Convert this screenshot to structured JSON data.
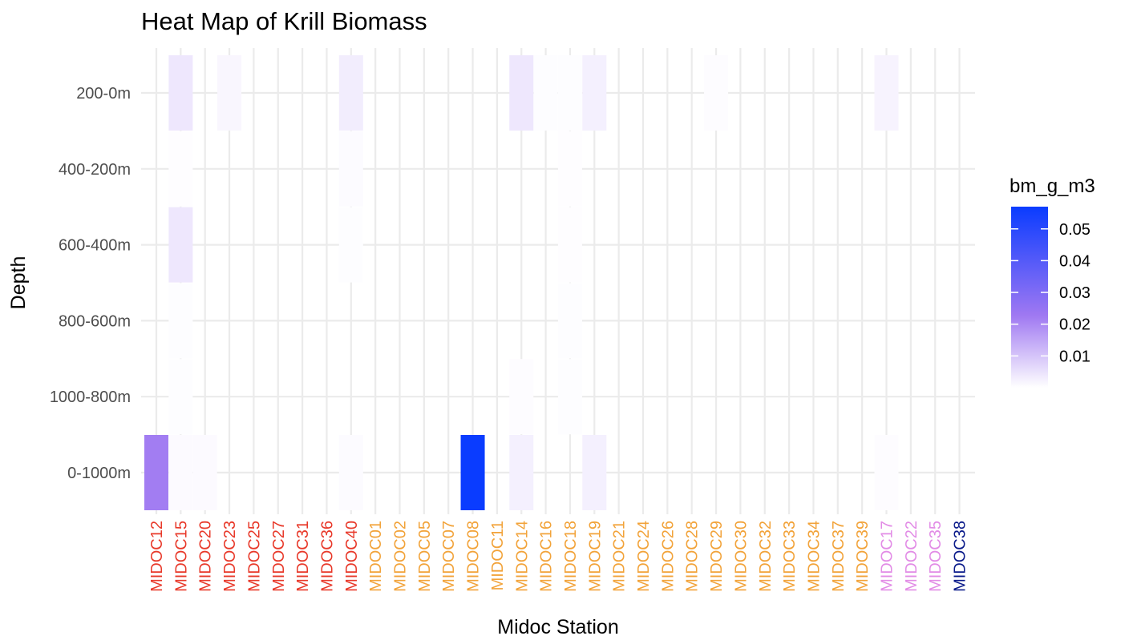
{
  "chart_data": {
    "type": "heatmap",
    "title": "Heat Map of Krill Biomass",
    "xlabel": "Midoc Station",
    "ylabel": "Depth",
    "x_categories": [
      "MIDOC12",
      "MIDOC15",
      "MIDOC20",
      "MIDOC23",
      "MIDOC25",
      "MIDOC27",
      "MIDOC31",
      "MIDOC36",
      "MIDOC40",
      "MIDOC01",
      "MIDOC02",
      "MIDOC05",
      "MIDOC07",
      "MIDOC08",
      "MIDOC11",
      "MIDOC14",
      "MIDOC16",
      "MIDOC18",
      "MIDOC19",
      "MIDOC21",
      "MIDOC24",
      "MIDOC26",
      "MIDOC28",
      "MIDOC29",
      "MIDOC30",
      "MIDOC32",
      "MIDOC33",
      "MIDOC34",
      "MIDOC37",
      "MIDOC39",
      "MIDOC17",
      "MIDOC22",
      "MIDOC35",
      "MIDOC38"
    ],
    "x_label_colors": [
      "#e8392a",
      "#e8392a",
      "#e8392a",
      "#e8392a",
      "#e8392a",
      "#e8392a",
      "#e8392a",
      "#e8392a",
      "#e8392a",
      "#f2a33a",
      "#f2a33a",
      "#f2a33a",
      "#f2a33a",
      "#f2a33a",
      "#f2a33a",
      "#f2a33a",
      "#f2a33a",
      "#f2a33a",
      "#f2a33a",
      "#f2a33a",
      "#f2a33a",
      "#f2a33a",
      "#f2a33a",
      "#f2a33a",
      "#f2a33a",
      "#f2a33a",
      "#f2a33a",
      "#f2a33a",
      "#f2a33a",
      "#f2a33a",
      "#e28ce6",
      "#e28ce6",
      "#e28ce6",
      "#0a1a8a"
    ],
    "y_categories": [
      "200-0m",
      "400-200m",
      "600-400m",
      "800-600m",
      "1000-800m",
      "0-1000m"
    ],
    "cells": [
      {
        "x": "MIDOC15",
        "y": "200-0m",
        "value": 0.004
      },
      {
        "x": "MIDOC23",
        "y": "200-0m",
        "value": 0.0015
      },
      {
        "x": "MIDOC40",
        "y": "200-0m",
        "value": 0.003
      },
      {
        "x": "MIDOC14",
        "y": "200-0m",
        "value": 0.004
      },
      {
        "x": "MIDOC16",
        "y": "200-0m",
        "value": 0.0004
      },
      {
        "x": "MIDOC18",
        "y": "200-0m",
        "value": 0.0004
      },
      {
        "x": "MIDOC19",
        "y": "200-0m",
        "value": 0.0025
      },
      {
        "x": "MIDOC29",
        "y": "200-0m",
        "value": 0.0005
      },
      {
        "x": "MIDOC17",
        "y": "200-0m",
        "value": 0.002
      },
      {
        "x": "MIDOC15",
        "y": "400-200m",
        "value": 0.0003
      },
      {
        "x": "MIDOC40",
        "y": "400-200m",
        "value": 0.0007
      },
      {
        "x": "MIDOC18",
        "y": "400-200m",
        "value": 0.0003
      },
      {
        "x": "MIDOC15",
        "y": "600-400m",
        "value": 0.004
      },
      {
        "x": "MIDOC40",
        "y": "600-400m",
        "value": 0.0004
      },
      {
        "x": "MIDOC18",
        "y": "600-400m",
        "value": 0.0003
      },
      {
        "x": "MIDOC15",
        "y": "800-600m",
        "value": 0.0004
      },
      {
        "x": "MIDOC18",
        "y": "800-600m",
        "value": 0.0004
      },
      {
        "x": "MIDOC15",
        "y": "1000-800m",
        "value": 0.0004
      },
      {
        "x": "MIDOC14",
        "y": "1000-800m",
        "value": 0.0005
      },
      {
        "x": "MIDOC18",
        "y": "1000-800m",
        "value": 0.0004
      },
      {
        "x": "MIDOC12",
        "y": "0-1000m",
        "value": 0.022
      },
      {
        "x": "MIDOC15",
        "y": "0-1000m",
        "value": 0.0008
      },
      {
        "x": "MIDOC20",
        "y": "0-1000m",
        "value": 0.0008
      },
      {
        "x": "MIDOC40",
        "y": "0-1000m",
        "value": 0.0006
      },
      {
        "x": "MIDOC08",
        "y": "0-1000m",
        "value": 0.057
      },
      {
        "x": "MIDOC14",
        "y": "0-1000m",
        "value": 0.0025
      },
      {
        "x": "MIDOC19",
        "y": "0-1000m",
        "value": 0.0025
      },
      {
        "x": "MIDOC17",
        "y": "0-1000m",
        "value": 0.0005
      }
    ],
    "legend": {
      "title": "bm_g_m3",
      "ticks": [
        0.01,
        0.02,
        0.03,
        0.04,
        0.05
      ],
      "tick_labels": [
        "0.01",
        "0.02",
        "0.03",
        "0.04",
        "0.05"
      ],
      "range": [
        0,
        0.057
      ],
      "low_color": "#ffffff",
      "mid_color": "#9f78f2",
      "high_color": "#0a3cff",
      "placement": "right"
    },
    "grid": true,
    "grid_color": "#ebebeb"
  }
}
